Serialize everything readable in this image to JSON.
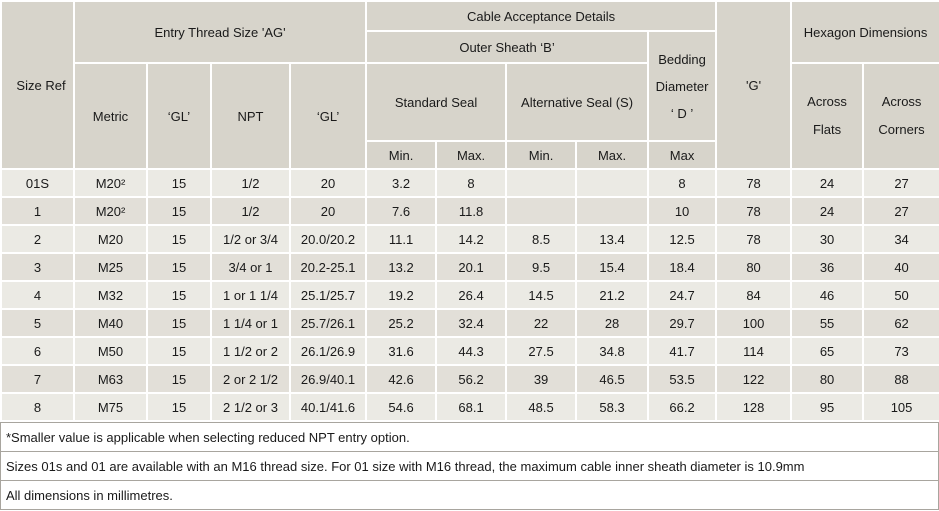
{
  "header": {
    "size_ref": "Size Ref",
    "entry_thread_group": "Entry Thread Size 'AG'",
    "entry_cols": [
      "Metric",
      "‘GL’",
      "NPT",
      "‘GL’"
    ],
    "cable_group": "Cable Acceptance Details",
    "outer_sheath_group": "Outer Sheath ‘B’",
    "standard_seal": "Standard Seal",
    "alternative_seal": "Alternative Seal (S)",
    "minmax": [
      "Min.",
      "Max.",
      "Min.",
      "Max."
    ],
    "bedding": {
      "lines": [
        "Bedding",
        "Diameter",
        "‘ D ’"
      ],
      "sub": "Max"
    },
    "g": "'G'",
    "hexagon_group": "Hexagon Dimensions",
    "across_flats": [
      "Across",
      "Flats"
    ],
    "across_corners": [
      "Across",
      "Corners"
    ]
  },
  "rows": [
    [
      "01S",
      "M20²",
      "15",
      "1/2",
      "20",
      "3.2",
      "8",
      "",
      "",
      "8",
      "78",
      "24",
      "27"
    ],
    [
      "1",
      "M20²",
      "15",
      "1/2",
      "20",
      "7.6",
      "11.8",
      "",
      "",
      "10",
      "78",
      "24",
      "27"
    ],
    [
      "2",
      "M20",
      "15",
      "1/2 or 3/4",
      "20.0/20.2",
      "11.1",
      "14.2",
      "8.5",
      "13.4",
      "12.5",
      "78",
      "30",
      "34"
    ],
    [
      "3",
      "M25",
      "15",
      "3/4 or 1",
      "20.2-25.1",
      "13.2",
      "20.1",
      "9.5",
      "15.4",
      "18.4",
      "80",
      "36",
      "40"
    ],
    [
      "4",
      "M32",
      "15",
      "1 or 1 1/4",
      "25.1/25.7",
      "19.2",
      "26.4",
      "14.5",
      "21.2",
      "24.7",
      "84",
      "46",
      "50"
    ],
    [
      "5",
      "M40",
      "15",
      "1 1/4 or 1",
      "25.7/26.1",
      "25.2",
      "32.4",
      "22",
      "28",
      "29.7",
      "100",
      "55",
      "62"
    ],
    [
      "6",
      "M50",
      "15",
      "1 1/2 or 2",
      "26.1/26.9",
      "31.6",
      "44.3",
      "27.5",
      "34.8",
      "41.7",
      "114",
      "65",
      "73"
    ],
    [
      "7",
      "M63",
      "15",
      "2 or 2 1/2",
      "26.9/40.1",
      "42.6",
      "56.2",
      "39",
      "46.5",
      "53.5",
      "122",
      "80",
      "88"
    ],
    [
      "8",
      "M75",
      "15",
      "2 1/2 or 3",
      "40.1/41.6",
      "54.6",
      "68.1",
      "48.5",
      "58.3",
      "66.2",
      "128",
      "95",
      "105"
    ]
  ],
  "notes": [
    "*Smaller value is applicable when selecting reduced NPT entry option.",
    "Sizes 01s and 01 are available with an M16 thread size. For 01 size with M16 thread, the maximum cable inner sheath diameter is 10.9mm",
    "All dimensions in millimetres."
  ],
  "colors": {
    "header_bg": "#d7d4cb",
    "row_odd_bg": "#ebeae4",
    "row_even_bg": "#e2dfd8",
    "grid_line": "#ffffff",
    "note_border": "#a8a59e",
    "text": "#1a1a1a"
  }
}
